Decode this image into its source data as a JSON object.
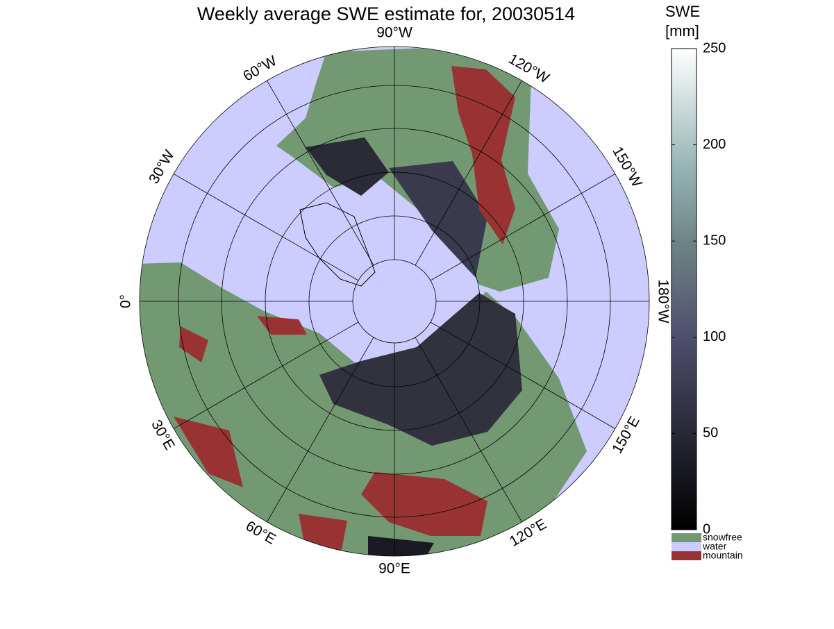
{
  "title": "Weekly average SWE estimate for, 20030514",
  "longitude_labels": [
    "90°W",
    "120°W",
    "150°W",
    "180°W",
    "150°E",
    "120°E",
    "90°E",
    "60°E",
    "30°E",
    "0°",
    "30°W",
    "60°W"
  ],
  "colorbar": {
    "label": [
      "SWE",
      "[mm]"
    ],
    "lim": [
      0,
      250
    ],
    "ticks": [
      0,
      50,
      100,
      150,
      200,
      250
    ]
  },
  "legend": [
    {
      "name": "snowfree",
      "color": "#739973"
    },
    {
      "name": "water",
      "color": "#ccccff"
    },
    {
      "name": "mountain",
      "color": "#993333"
    }
  ]
}
